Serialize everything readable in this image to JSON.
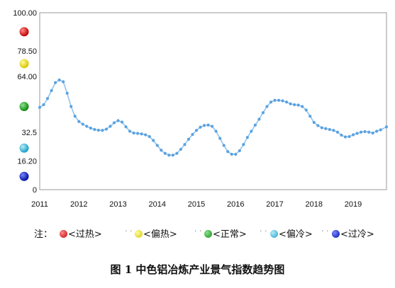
{
  "chart_data": {
    "type": "line",
    "title": "",
    "xlabel": "",
    "ylabel": "",
    "ylim": [
      0,
      100
    ],
    "yticks": [
      0,
      16.2,
      32.5,
      64.0,
      78.5,
      100.0
    ],
    "ytick_labels": [
      "0",
      "16.20",
      "32.5",
      "64.00",
      "78.50",
      "100.00"
    ],
    "xlim": [
      2011.0,
      2019.85
    ],
    "xtick_labels": [
      "2011",
      "2012",
      "2013",
      "2014",
      "2015",
      "2016",
      "2017",
      "2018",
      "2019"
    ],
    "series": [
      {
        "marker_color": "#5aa2e0",
        "x": [
          2011.0,
          2011.1,
          2011.2,
          2011.3,
          2011.4,
          2011.5,
          2011.6,
          2011.7,
          2011.8,
          2011.9,
          2012.0,
          2012.1,
          2012.2,
          2012.3,
          2012.4,
          2012.5,
          2012.6,
          2012.7,
          2012.8,
          2012.9,
          2013.0,
          2013.1,
          2013.2,
          2013.3,
          2013.4,
          2013.5,
          2013.6,
          2013.7,
          2013.8,
          2013.9,
          2014.0,
          2014.1,
          2014.2,
          2014.3,
          2014.4,
          2014.5,
          2014.6,
          2014.7,
          2014.8,
          2014.9,
          2015.0,
          2015.1,
          2015.2,
          2015.3,
          2015.4,
          2015.5,
          2015.6,
          2015.7,
          2015.8,
          2015.9,
          2016.0,
          2016.1,
          2016.2,
          2016.3,
          2016.4,
          2016.5,
          2016.6,
          2016.7,
          2016.8,
          2016.9,
          2017.0,
          2017.1,
          2017.2,
          2017.3,
          2017.4,
          2017.5,
          2017.6,
          2017.7,
          2017.8,
          2017.9,
          2018.0,
          2018.1,
          2018.2,
          2018.3,
          2018.4,
          2018.5,
          2018.6,
          2018.7,
          2018.8,
          2018.9,
          2019.0,
          2019.1,
          2019.2,
          2019.3,
          2019.4,
          2019.5,
          2019.6,
          2019.7,
          2019.85
        ],
        "values": [
          46.5,
          48.0,
          51.5,
          56.0,
          60.5,
          62.0,
          61.0,
          54.5,
          47.0,
          41.5,
          38.5,
          37.0,
          35.8,
          34.8,
          34.0,
          33.6,
          33.5,
          34.2,
          35.8,
          37.8,
          39.0,
          38.2,
          35.5,
          33.0,
          32.0,
          31.8,
          31.5,
          31.0,
          30.0,
          27.8,
          25.0,
          22.3,
          20.5,
          19.5,
          19.5,
          20.5,
          22.8,
          25.5,
          28.5,
          31.2,
          33.5,
          35.3,
          36.3,
          36.5,
          35.8,
          33.0,
          29.0,
          25.0,
          21.5,
          20.0,
          20.0,
          22.0,
          25.5,
          29.5,
          33.0,
          36.5,
          39.8,
          43.5,
          47.0,
          49.5,
          50.5,
          50.5,
          50.2,
          49.5,
          48.5,
          48.0,
          47.8,
          47.0,
          45.0,
          41.5,
          38.0,
          36.2,
          35.0,
          34.5,
          34.0,
          33.5,
          32.5,
          30.8,
          29.8,
          30.0,
          31.0,
          31.8,
          32.5,
          32.8,
          32.5,
          32.0,
          33.0,
          33.8,
          35.5
        ]
      }
    ],
    "grid": false,
    "zone_markers": [
      {
        "value": 89.25,
        "color": "#d40000",
        "name": "red-zone-marker"
      },
      {
        "value": 71.25,
        "color": "#f0e000",
        "name": "yellow-zone-marker"
      },
      {
        "value": 47.0,
        "color": "#1fa51f",
        "name": "green-zone-marker"
      },
      {
        "value": 23.5,
        "color": "#33c3e6",
        "name": "cyan-zone-marker"
      },
      {
        "value": 7.5,
        "color": "#1020c8",
        "name": "blue-zone-marker"
      }
    ]
  },
  "legend": {
    "note_label": "注：",
    "items": [
      {
        "label": "<过热>",
        "color": "#d40000"
      },
      {
        "label": "<偏热>",
        "color": "#f0e000"
      },
      {
        "label": "<正常>",
        "color": "#1fa51f"
      },
      {
        "label": "<偏冷>",
        "color": "#33c3e6"
      },
      {
        "label": "<过冷>",
        "color": "#1020c8"
      }
    ]
  },
  "caption": "图 1  中色铝冶炼产业景气指数趋势图"
}
